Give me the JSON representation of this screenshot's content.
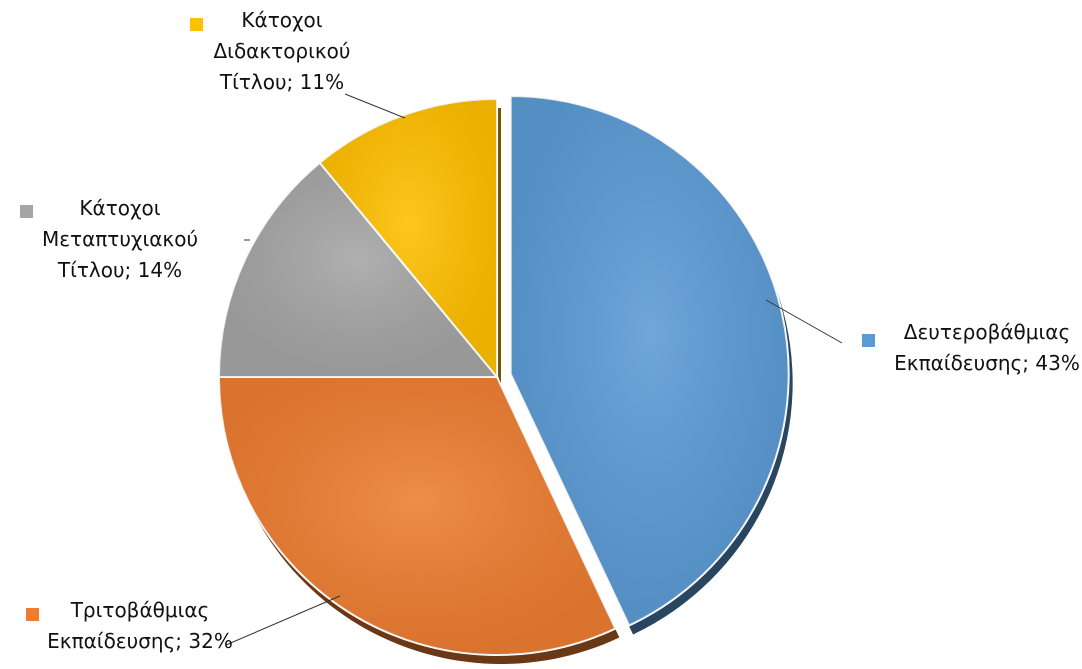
{
  "chart_data": {
    "type": "pie",
    "slices": [
      {
        "label": "Δευτεροβάθμιας Εκπαίδευσης; 43%",
        "lines": [
          "Δευτεροβάθμιας",
          "Εκπαίδευσης; 43%"
        ],
        "value": 43,
        "color": "#5B9BD5",
        "exploded": true
      },
      {
        "label": "Τριτοβάθμιας Εκπαίδευσης; 32%",
        "lines": [
          "Τριτοβάθμιας",
          "Εκπαίδευσης; 32%"
        ],
        "value": 32,
        "color": "#ED7D31",
        "exploded": false
      },
      {
        "label": "Κάτοχοι Μεταπτυχιακού Τίτλου; 14%",
        "lines": [
          "Κάτοχοι",
          "Μεταπτυχιακού",
          "Τίτλου; 14%"
        ],
        "value": 14,
        "color": "#A5A5A5",
        "exploded": false
      },
      {
        "label": "Κάτοχοι Διδακτορικού Τίτλου; 11%",
        "lines": [
          "Κάτοχοι",
          "Διδακτορικού",
          "Τίτλου; 11%"
        ],
        "value": 11,
        "color": "#FFC000",
        "exploded": false
      }
    ],
    "start_angle_deg": 0,
    "direction": "clockwise",
    "legend": "none",
    "labels": "outside-with-leader-lines"
  }
}
